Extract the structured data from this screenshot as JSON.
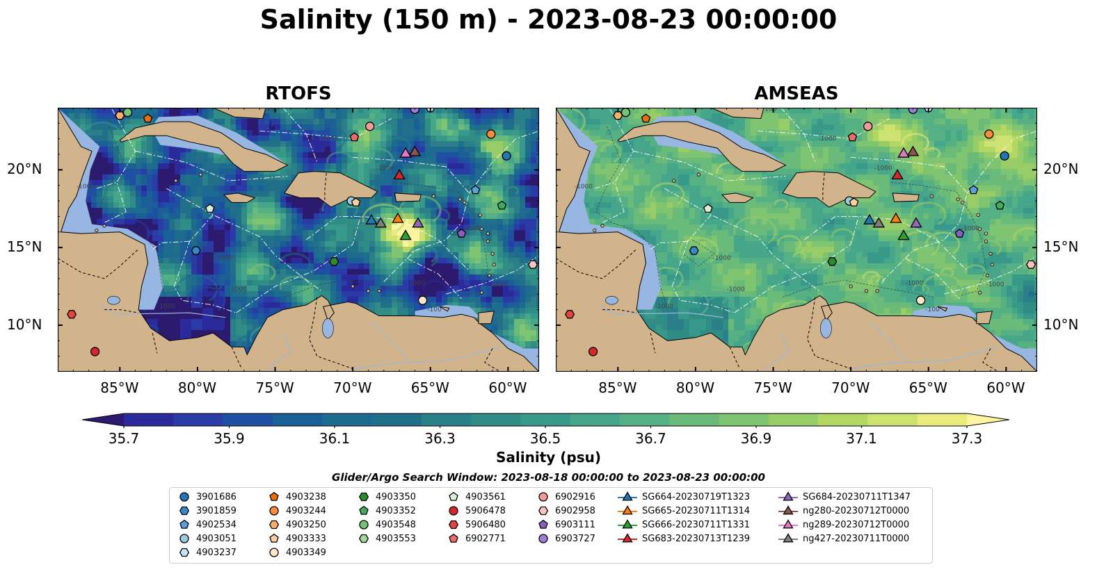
{
  "title": "Salinity (150 m) - 2023-08-23 00:00:00",
  "panels": [
    {
      "title": "RTOFS",
      "scheme": "rtofs"
    },
    {
      "title": "AMSEAS",
      "scheme": "amseas"
    }
  ],
  "map_extent": {
    "lon": [
      -89,
      -58
    ],
    "lat": [
      7,
      24
    ]
  },
  "lon_ticks": [
    {
      "value": -85,
      "label": "85°W"
    },
    {
      "value": -80,
      "label": "80°W"
    },
    {
      "value": -75,
      "label": "75°W"
    },
    {
      "value": -70,
      "label": "70°W"
    },
    {
      "value": -65,
      "label": "65°W"
    },
    {
      "value": -60,
      "label": "60°W"
    }
  ],
  "lat_ticks": [
    {
      "value": 20,
      "label": "20°N"
    },
    {
      "value": 15,
      "label": "15°N"
    },
    {
      "value": 10,
      "label": "10°N"
    }
  ],
  "colors": {
    "land": "#d2b48c",
    "shallow_water": "#97b6e1",
    "marker_edge": "#000000",
    "colorbar": [
      "#2b1a6e",
      "#2b2a9a",
      "#2a3ba8",
      "#1f4fa0",
      "#1a5f96",
      "#1d6b8f",
      "#226f8a",
      "#2a7f88",
      "#2f8d86",
      "#38998a",
      "#45a68a",
      "#55b183",
      "#6aba7a",
      "#7fc470",
      "#98cc66",
      "#b2d765",
      "#cde270",
      "#e9ec7c",
      "#fdf3a0"
    ]
  },
  "colorbar": {
    "min": 35.6,
    "max": 37.4,
    "ticks": [
      "35.7",
      "35.9",
      "36.1",
      "36.3",
      "36.5",
      "36.7",
      "36.9",
      "37.1",
      "37.3"
    ],
    "label": "Salinity (psu)"
  },
  "search_window": "Glider/Argo Search Window: 2023-08-18 00:00:00 to 2023-08-23 00:00:00",
  "floats": [
    {
      "id": "3901686",
      "marker": "circle",
      "color": "#1f77b4",
      "lon": -60.1,
      "lat": 20.9
    },
    {
      "id": "3901859",
      "marker": "hexagon",
      "color": "#3a87c8",
      "lon": -80.1,
      "lat": 14.8
    },
    {
      "id": "4902534",
      "marker": "pentagon",
      "color": "#5aa0dc",
      "lon": -62.1,
      "lat": 18.7
    },
    {
      "id": "4903051",
      "marker": "circle",
      "color": "#9ecae1",
      "lon": -70.1,
      "lat": 18.0
    },
    {
      "id": "4903237",
      "marker": "hexagon",
      "color": "#c6e4f5",
      "lon": -65.0,
      "lat": 24.0
    },
    {
      "id": "4903238",
      "marker": "pentagon",
      "color": "#e6700f",
      "lon": -83.2,
      "lat": 23.3
    },
    {
      "id": "4903244",
      "marker": "circle",
      "color": "#fd8d3c",
      "lon": -61.1,
      "lat": 22.3
    },
    {
      "id": "4903250",
      "marker": "hexagon",
      "color": "#fdae6b",
      "lon": -85.0,
      "lat": 23.5
    },
    {
      "id": "4903333",
      "marker": "pentagon",
      "color": "#fdd0a2",
      "lon": -69.8,
      "lat": 17.9
    },
    {
      "id": "4903349",
      "marker": "circle",
      "color": "#fee6c8",
      "lon": -65.5,
      "lat": 11.6
    },
    {
      "id": "4903350",
      "marker": "hexagon",
      "color": "#2e8b2e",
      "lon": -71.2,
      "lat": 14.1
    },
    {
      "id": "4903352",
      "marker": "pentagon",
      "color": "#41ab5d",
      "lon": -60.4,
      "lat": 17.7
    },
    {
      "id": "4903548",
      "marker": "circle",
      "color": "#74c476",
      "lon": -84.5,
      "lat": 23.7
    },
    {
      "id": "4903553",
      "marker": "hexagon",
      "color": "#a1d99b",
      "lon": -67.0,
      "lat": 24.5
    },
    {
      "id": "4903561",
      "marker": "pentagon",
      "color": "#d9f0d3",
      "lon": -79.2,
      "lat": 17.5
    },
    {
      "id": "5906478",
      "marker": "circle",
      "color": "#d62728",
      "lon": -86.6,
      "lat": 8.3
    },
    {
      "id": "5906480",
      "marker": "hexagon",
      "color": "#e0453f",
      "lon": -88.1,
      "lat": 10.7
    },
    {
      "id": "6902771",
      "marker": "pentagon",
      "color": "#ef6a6a",
      "lon": -69.9,
      "lat": 22.1
    },
    {
      "id": "6902916",
      "marker": "circle",
      "color": "#f49a9a",
      "lon": -68.9,
      "lat": 22.8
    },
    {
      "id": "6902958",
      "marker": "hexagon",
      "color": "#fbc4c0",
      "lon": -58.4,
      "lat": 13.9
    },
    {
      "id": "6903111",
      "marker": "pentagon",
      "color": "#8a5fc2",
      "lon": -63.0,
      "lat": 15.9
    },
    {
      "id": "6903727",
      "marker": "circle",
      "color": "#a07dd6",
      "lon": -66.0,
      "lat": 23.9
    }
  ],
  "gliders": [
    {
      "id": "SG664-20230719T1323",
      "color": "#1f77b4",
      "lon": -68.8,
      "lat": 16.8
    },
    {
      "id": "SG665-20230711T1314",
      "color": "#ff7f0e",
      "lon": -67.1,
      "lat": 16.9
    },
    {
      "id": "SG666-20230711T1331",
      "color": "#2ca02c",
      "lon": -66.6,
      "lat": 15.8
    },
    {
      "id": "SG683-20230713T1239",
      "color": "#d62728",
      "lon": -67.0,
      "lat": 19.7
    },
    {
      "id": "SG684-20230711T1347",
      "color": "#9467bd",
      "lon": -65.8,
      "lat": 16.6
    },
    {
      "id": "ng280-20230712T0000",
      "color": "#8c564b",
      "lon": -66.0,
      "lat": 21.2
    },
    {
      "id": "ng289-20230712T0000",
      "color": "#e377c2",
      "lon": -66.6,
      "lat": 21.1
    },
    {
      "id": "ng427-20230711T0000",
      "color": "#7f7f7f",
      "lon": -68.2,
      "lat": 16.6
    }
  ]
}
